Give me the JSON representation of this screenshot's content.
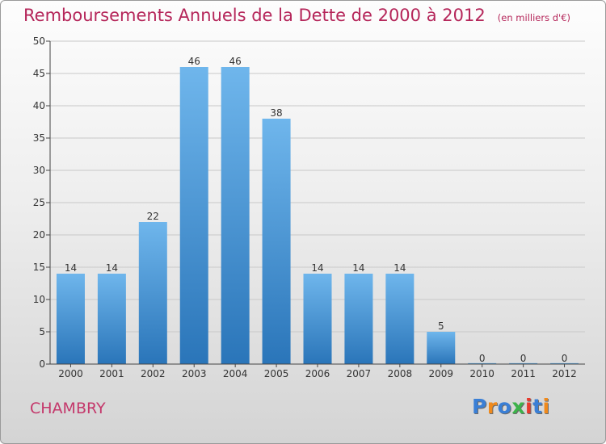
{
  "title": "Remboursements Annuels de la Dette de 2000 à 2012",
  "unit": "(en milliers d'€)",
  "commune": "CHAMBRY",
  "logo": {
    "text": "Proxiti",
    "colors": [
      "#3a7fd6",
      "#f08a1c",
      "#3a7fd6",
      "#3db34a",
      "#e63a2e",
      "#3a7fd6",
      "#f08a1c"
    ]
  },
  "colors": {
    "bar_top": "#6fb6ec",
    "bar_bottom": "#2a75b9",
    "title": "#b5265a",
    "commune": "#c4386b",
    "grid": "#c8c8c8"
  },
  "chart_data": {
    "type": "bar",
    "categories": [
      "2000",
      "2001",
      "2002",
      "2003",
      "2004",
      "2005",
      "2006",
      "2007",
      "2008",
      "2009",
      "2010",
      "2011",
      "2012"
    ],
    "values": [
      14,
      14,
      22,
      46,
      46,
      38,
      14,
      14,
      14,
      5,
      0,
      0,
      0
    ],
    "data_labels": [
      "14",
      "14",
      "22",
      "46",
      "46",
      "38",
      "14",
      "14",
      "14",
      "5",
      "0",
      "0",
      "0"
    ],
    "yticks": [
      "0",
      "5",
      "10",
      "15",
      "20",
      "25",
      "30",
      "35",
      "40",
      "45",
      "50"
    ],
    "ylim": [
      0,
      50
    ],
    "grid": true,
    "title": "Remboursements Annuels de la Dette de 2000 à 2012",
    "xlabel": "",
    "ylabel": ""
  }
}
